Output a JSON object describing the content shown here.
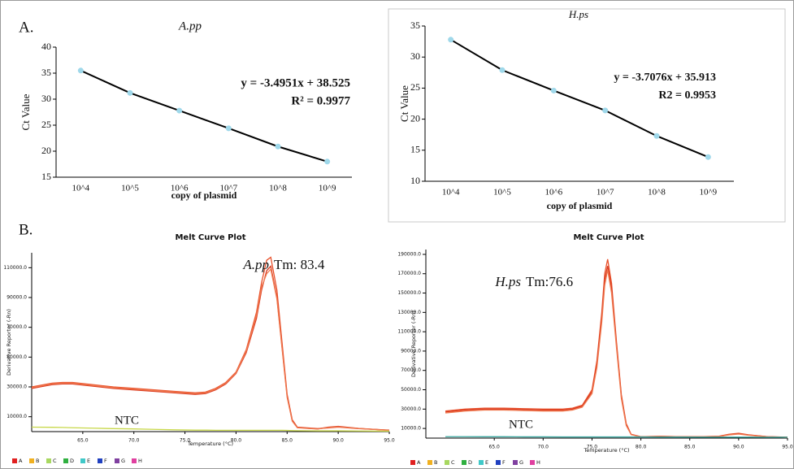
{
  "panels": [
    "A.",
    "B."
  ],
  "chart_data": [
    {
      "type": "line",
      "title": "A.pp",
      "x_label": "copy of plasmid",
      "y_label": "Ct Value",
      "categories": [
        "10^4",
        "10^5",
        "10^6",
        "10^7",
        "10^8",
        "10^9"
      ],
      "series": [
        {
          "color": "#000000",
          "marker_color": "#9fd8ea",
          "values": [
            35.5,
            31.2,
            27.8,
            24.4,
            20.9,
            18.0
          ]
        }
      ],
      "ylim": [
        15,
        40
      ],
      "yticks": [
        15,
        20,
        25,
        30,
        35,
        40
      ],
      "annotations": [
        "y = -3.4951x + 38.525",
        "R² = 0.9977"
      ]
    },
    {
      "type": "line",
      "title": "H.ps",
      "x_label": "copy of plasmid",
      "y_label": "Ct Value",
      "categories": [
        "10^4",
        "10^5",
        "10^6",
        "10^7",
        "10^8",
        "10^9"
      ],
      "series": [
        {
          "color": "#000000",
          "marker_color": "#9fd8ea",
          "values": [
            32.8,
            27.9,
            24.6,
            21.4,
            17.3,
            13.9
          ]
        }
      ],
      "ylim": [
        10,
        35
      ],
      "yticks": [
        10,
        15,
        20,
        25,
        30,
        35
      ],
      "annotations": [
        "y = -3.7076x + 35.913",
        "R2 = 0.9953"
      ]
    },
    {
      "type": "line",
      "title": "Melt Curve Plot",
      "x_label": "Temperature (°C)",
      "y_label": "Derivative Reporter (-Rn)",
      "x": [
        60,
        62,
        63,
        64,
        66,
        68,
        70,
        72,
        74,
        76,
        77,
        78,
        79,
        80,
        81,
        82,
        82.5,
        83,
        83.4,
        84,
        84.5,
        85,
        85.5,
        86,
        88,
        89,
        90,
        92,
        95
      ],
      "series": [
        {
          "color": "#e8502a",
          "values": [
            30000,
            32500,
            33000,
            33000,
            31500,
            30000,
            29000,
            28000,
            27000,
            26000,
            26500,
            29000,
            33000,
            40000,
            55000,
            80000,
            100000,
            115000,
            117000,
            95000,
            60000,
            25000,
            8000,
            3000,
            2000,
            2500,
            3000,
            2000,
            1000
          ]
        },
        {
          "color": "#d9381e",
          "values": [
            29000,
            31500,
            32000,
            32000,
            30500,
            29000,
            28000,
            27000,
            26000,
            25000,
            25500,
            28000,
            32000,
            39000,
            53000,
            76000,
            95000,
            108000,
            111000,
            90000,
            57000,
            24000,
            7500,
            2800,
            1800,
            3000,
            3500,
            2200,
            900
          ]
        },
        {
          "color": "#f07a50",
          "values": [
            29500,
            32000,
            32500,
            32500,
            31000,
            29500,
            28500,
            27500,
            26500,
            25500,
            26000,
            28500,
            32500,
            39500,
            54000,
            78000,
            97000,
            106000,
            109000,
            89000,
            56000,
            23000,
            7000,
            2600,
            1700,
            2800,
            3200,
            2100,
            800
          ]
        },
        {
          "color": "#c8d84a",
          "values": [
            3000,
            2900,
            2800,
            2600,
            2300,
            2000,
            1800,
            1500,
            1200,
            1000,
            1000,
            900,
            900,
            900,
            900,
            900,
            900,
            900,
            900,
            900,
            900,
            800,
            700,
            600,
            500,
            500,
            500,
            400,
            300
          ]
        }
      ],
      "xlim": [
        60,
        95
      ],
      "xticks": [
        {
          "value": 65,
          "label": "65.0"
        },
        {
          "value": 70,
          "label": "70.0"
        },
        {
          "value": 75,
          "label": "75.0"
        },
        {
          "value": 80,
          "label": "80.0"
        },
        {
          "value": 85,
          "label": "85.0"
        },
        {
          "value": 90,
          "label": "90.0"
        },
        {
          "value": 95,
          "label": "95.0"
        }
      ],
      "ylim": [
        0,
        120000
      ],
      "yticks": [
        {
          "value": 10000,
          "label": "10000.0"
        },
        {
          "value": 30000,
          "label": "30000.0"
        },
        {
          "value": 50000,
          "label": "50000.0"
        },
        {
          "value": 70000,
          "label": "70000.0"
        },
        {
          "value": 90000,
          "label": "90000.0"
        },
        {
          "value": 110000,
          "label": "110000.0"
        }
      ],
      "annotations": [
        "A.pp",
        "Tm: 83.4",
        "NTC"
      ],
      "legend": [
        {
          "label": "A",
          "color": "#e02020"
        },
        {
          "label": "B",
          "color": "#f0b020"
        },
        {
          "label": "C",
          "color": "#a8d860"
        },
        {
          "label": "D",
          "color": "#30b040"
        },
        {
          "label": "E",
          "color": "#40c8c8"
        },
        {
          "label": "F",
          "color": "#2040c0"
        },
        {
          "label": "G",
          "color": "#8040a0"
        },
        {
          "label": "H",
          "color": "#e040a0"
        }
      ]
    },
    {
      "type": "line",
      "title": "Melt Curve Plot",
      "x_label": "Temperature (°C)",
      "y_label": "Derivative Reporter (-Rn)",
      "x": [
        60,
        62,
        64,
        66,
        68,
        70,
        72,
        73,
        74,
        75,
        75.5,
        76,
        76.3,
        76.6,
        77,
        77.5,
        78,
        78.5,
        79,
        80,
        82,
        84,
        86,
        88,
        89,
        90,
        91,
        93,
        95
      ],
      "series": [
        {
          "color": "#e8502a",
          "values": [
            28000,
            30000,
            31000,
            31000,
            30500,
            30000,
            30000,
            31000,
            34000,
            50000,
            80000,
            130000,
            170000,
            185000,
            160000,
            100000,
            45000,
            15000,
            4000,
            1500,
            2000,
            1500,
            1500,
            2000,
            4000,
            5000,
            3500,
            1500,
            1000
          ]
        },
        {
          "color": "#d9381e",
          "values": [
            27000,
            29000,
            30000,
            30000,
            29500,
            29000,
            29000,
            30000,
            33000,
            48000,
            76000,
            125000,
            164000,
            178000,
            155000,
            97000,
            43000,
            14000,
            3800,
            1400,
            1800,
            1400,
            1400,
            1800,
            3500,
            4500,
            3200,
            1400,
            900
          ]
        },
        {
          "color": "#f07a50",
          "values": [
            26000,
            28000,
            29000,
            29000,
            28500,
            28000,
            28000,
            29000,
            32000,
            46000,
            73000,
            120000,
            158000,
            174000,
            150000,
            94000,
            41000,
            13000,
            3600,
            1300,
            1700,
            1300,
            1300,
            1700,
            3300,
            4200,
            3000,
            1300,
            800
          ]
        },
        {
          "color": "#3aa8a0",
          "values": [
            1500,
            1500,
            1400,
            1400,
            1300,
            1300,
            1200,
            1200,
            1200,
            1200,
            1200,
            1200,
            1200,
            1200,
            1200,
            1200,
            1200,
            1200,
            1200,
            1200,
            1100,
            1100,
            1000,
            1000,
            1000,
            1000,
            1000,
            900,
            900
          ]
        }
      ],
      "xlim": [
        58,
        95
      ],
      "xticks": [
        {
          "value": 65,
          "label": "65.0"
        },
        {
          "value": 70,
          "label": "70.0"
        },
        {
          "value": 75,
          "label": "75.0"
        },
        {
          "value": 80,
          "label": "80.0"
        },
        {
          "value": 85,
          "label": "85.0"
        },
        {
          "value": 90,
          "label": "90.0"
        },
        {
          "value": 95,
          "label": "95.0"
        }
      ],
      "ylim": [
        0,
        195000
      ],
      "yticks": [
        {
          "value": 10000,
          "label": "10000.0"
        },
        {
          "value": 30000,
          "label": "30000.0"
        },
        {
          "value": 50000,
          "label": "50000.0"
        },
        {
          "value": 70000,
          "label": "70000.0"
        },
        {
          "value": 90000,
          "label": "90000.0"
        },
        {
          "value": 110000,
          "label": "110000.0"
        },
        {
          "value": 130000,
          "label": "130000.0"
        },
        {
          "value": 150000,
          "label": "150000.0"
        },
        {
          "value": 170000,
          "label": "170000.0"
        },
        {
          "value": 190000,
          "label": "190000.0"
        }
      ],
      "annotations": [
        "H.ps",
        "Tm:76.6",
        "NTC"
      ],
      "legend": [
        {
          "label": "A",
          "color": "#e02020"
        },
        {
          "label": "B",
          "color": "#f0b020"
        },
        {
          "label": "C",
          "color": "#a8d860"
        },
        {
          "label": "D",
          "color": "#30b040"
        },
        {
          "label": "E",
          "color": "#40c8c8"
        },
        {
          "label": "F",
          "color": "#2040c0"
        },
        {
          "label": "G",
          "color": "#8040a0"
        },
        {
          "label": "H",
          "color": "#e040a0"
        }
      ]
    }
  ]
}
